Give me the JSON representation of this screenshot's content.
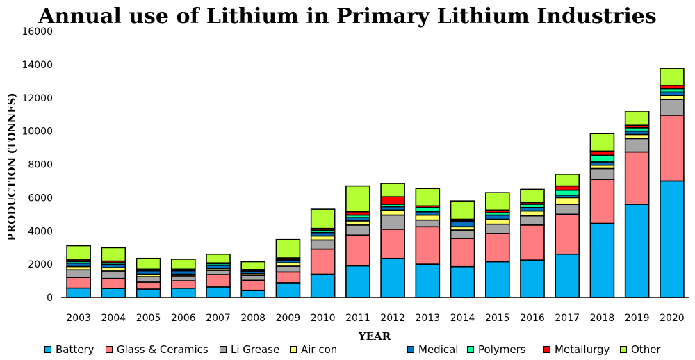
{
  "chart_data": {
    "type": "bar",
    "stacked": true,
    "title": "Annual use of Lithium in Primary Lithium Industries",
    "xlabel": "YEAR",
    "ylabel": "PRODUCTION (TONNES)",
    "ylim": [
      0,
      16000
    ],
    "yticks": [
      "0",
      "2000",
      "4000",
      "6000",
      "8000",
      "10000",
      "12000",
      "14000",
      "16000"
    ],
    "grid": false,
    "legend_position": "bottom",
    "categories": [
      "2003",
      "2004",
      "2005",
      "2006",
      "2007",
      "2008",
      "2009",
      "2010",
      "2011",
      "2012",
      "2013",
      "2014",
      "2015",
      "2016",
      "2017",
      "2018",
      "2019",
      "2020"
    ],
    "series": [
      {
        "name": "Battery",
        "color": "#00b0f0",
        "values": [
          560,
          540,
          500,
          550,
          630,
          430,
          880,
          1400,
          1900,
          2350,
          2000,
          1850,
          2150,
          2250,
          2600,
          4450,
          5600,
          7000
        ]
      },
      {
        "name": "Glass & Ceramics",
        "color": "#ff7c80",
        "values": [
          650,
          600,
          420,
          450,
          750,
          600,
          650,
          1500,
          1850,
          1750,
          2250,
          1700,
          1700,
          2100,
          2400,
          2650,
          3150,
          3950
        ]
      },
      {
        "name": "Li Grease",
        "color": "#a6a6a6",
        "values": [
          450,
          450,
          330,
          300,
          250,
          300,
          350,
          550,
          600,
          850,
          400,
          500,
          550,
          550,
          600,
          650,
          800,
          950
        ]
      },
      {
        "name": "Air con",
        "color": "#ffff66",
        "values": [
          200,
          200,
          150,
          100,
          100,
          100,
          200,
          250,
          250,
          300,
          300,
          200,
          300,
          300,
          400,
          200,
          250,
          250
        ]
      },
      {
        "name": "Medical",
        "color": "#0070c0",
        "values": [
          200,
          200,
          200,
          200,
          200,
          150,
          150,
          200,
          200,
          200,
          200,
          300,
          250,
          200,
          150,
          200,
          200,
          200
        ]
      },
      {
        "name": "Polymers",
        "color": "#00ff99",
        "values": [
          100,
          100,
          50,
          50,
          100,
          50,
          50,
          150,
          150,
          150,
          250,
          50,
          150,
          200,
          300,
          400,
          200,
          200
        ]
      },
      {
        "name": "Metallurgy",
        "color": "#ff0000",
        "values": [
          100,
          100,
          50,
          50,
          50,
          50,
          100,
          100,
          200,
          450,
          100,
          100,
          150,
          100,
          250,
          250,
          150,
          200
        ]
      },
      {
        "name": "Other",
        "color": "#b3ff33",
        "values": [
          850,
          800,
          650,
          600,
          520,
          470,
          1100,
          1150,
          1550,
          800,
          1050,
          1100,
          1050,
          800,
          700,
          1050,
          850,
          1000
        ]
      }
    ]
  }
}
